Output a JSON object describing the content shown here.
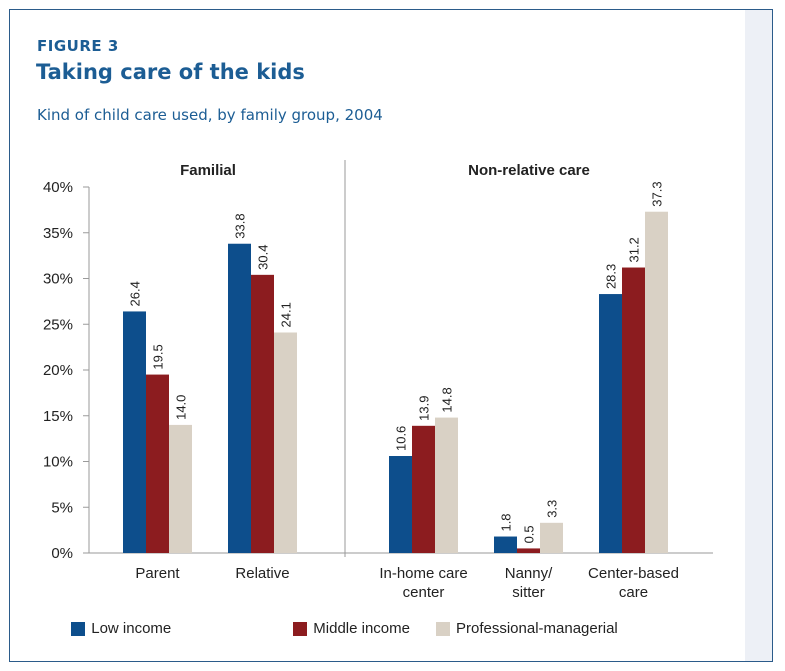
{
  "header": {
    "figure_label": "FIGURE 3",
    "title": "Taking care of the kids",
    "subtitle": "Kind of child care used, by family group, 2004"
  },
  "colors": {
    "accent": "#1c5d94",
    "low_income": "#0d4e8c",
    "middle_income": "#8c1c1f",
    "professional_managerial": "#d9d1c5",
    "side_panel": "#edf0f6"
  },
  "chart_data": {
    "type": "bar",
    "groups": [
      {
        "label": "Familial",
        "categories": [
          "Parent",
          "Relative"
        ]
      },
      {
        "label": "Non-relative care",
        "categories": [
          "In-home care center",
          "Nanny/ sitter",
          "Center-based care"
        ]
      }
    ],
    "categories": [
      "Parent",
      "Relative",
      "In-home care center",
      "Nanny/ sitter",
      "Center-based care"
    ],
    "category_lines": [
      [
        "Parent"
      ],
      [
        "Relative"
      ],
      [
        "In-home care",
        "center"
      ],
      [
        "Nanny/",
        "sitter"
      ],
      [
        "Center-based",
        "care"
      ]
    ],
    "series": [
      {
        "name": "Low income",
        "values": [
          26.4,
          33.8,
          10.6,
          1.8,
          28.3
        ]
      },
      {
        "name": "Middle income",
        "values": [
          19.5,
          30.4,
          13.9,
          0.5,
          31.2
        ]
      },
      {
        "name": "Professional-managerial",
        "values": [
          14.0,
          24.1,
          14.8,
          3.3,
          37.3
        ]
      }
    ],
    "ylim": [
      0,
      40
    ],
    "yticks": [
      "0%",
      "5%",
      "10%",
      "15%",
      "20%",
      "25%",
      "30%",
      "35%",
      "40%"
    ],
    "grid": false,
    "legend_position": "bottom"
  }
}
